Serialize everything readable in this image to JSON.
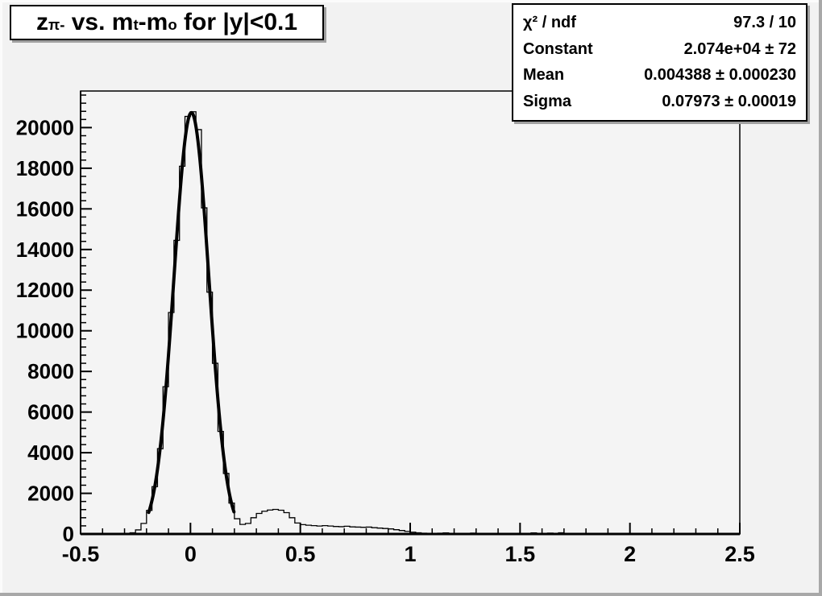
{
  "title": {
    "plain": "z_{pi-} vs. m_{t}-m_{o} for |y|<0.1",
    "segments": [
      {
        "text": "z"
      },
      {
        "text": "π-",
        "sub": true
      },
      {
        "text": " vs. m"
      },
      {
        "text": "t",
        "sub": true
      },
      {
        "text": "-m"
      },
      {
        "text": "o",
        "sub": true
      },
      {
        "text": " for |y|<0.1"
      }
    ]
  },
  "stats_box": {
    "rows": [
      {
        "label": "χ² / ndf",
        "value": "97.3 / 10"
      },
      {
        "label": "Constant",
        "value": "2.074e+04 ± 72"
      },
      {
        "label": "Mean",
        "value": "0.004388 ± 0.000230"
      },
      {
        "label": "Sigma",
        "value": "0.07973 ± 0.00019"
      }
    ]
  },
  "colors": {
    "canvas_background": "#f2f2f2",
    "frame_fill": "#f4f4f4",
    "line": "#000000",
    "box_fill": "#ffffff",
    "bevel_light": "#fbfbfb",
    "bevel_dark": "#a8a8a8"
  },
  "chart_data": {
    "type": "bar",
    "subtype": "step-histogram-with-gaussian-fit",
    "title": "z_{pi-} vs. m_{t}-m_{o} for |y|<0.1",
    "xlabel": "",
    "ylabel": "",
    "xlim": [
      -0.5,
      2.5
    ],
    "ylim": [
      0,
      21800
    ],
    "grid": false,
    "legend": false,
    "x_major_ticks": [
      -0.5,
      0,
      0.5,
      1,
      1.5,
      2,
      2.5
    ],
    "x_tick_labels": [
      "-0.5",
      "0",
      "0.5",
      "1",
      "1.5",
      "2",
      "2.5"
    ],
    "x_minor_step": 0.1,
    "y_major_step": 2000,
    "y_major_ticks": [
      0,
      2000,
      4000,
      6000,
      8000,
      10000,
      12000,
      14000,
      16000,
      18000,
      20000
    ],
    "y_tick_labels": [
      "0",
      "2000",
      "4000",
      "6000",
      "8000",
      "10000",
      "12000",
      "14000",
      "16000",
      "18000",
      "20000"
    ],
    "y_minor_step": 400,
    "bin_start": -0.5,
    "bin_width": 0.025,
    "bin_values": [
      0,
      0,
      0,
      0,
      0,
      0,
      5,
      10,
      30,
      60,
      200,
      520,
      1160,
      2330,
      4200,
      7250,
      10900,
      14450,
      18100,
      20550,
      20780,
      19900,
      16050,
      11900,
      8400,
      5050,
      2980,
      1520,
      750,
      470,
      520,
      800,
      1010,
      1120,
      1180,
      1210,
      1170,
      1050,
      800,
      540,
      460,
      430,
      410,
      390,
      410,
      390,
      370,
      360,
      380,
      350,
      340,
      330,
      340,
      310,
      290,
      270,
      250,
      210,
      170,
      130,
      90,
      60,
      40,
      30,
      25,
      40,
      55,
      35,
      25,
      20,
      30,
      45,
      30,
      20,
      15,
      10,
      15,
      10,
      10,
      15,
      10,
      20,
      55,
      25,
      15,
      45,
      20,
      60,
      25,
      10,
      10,
      5,
      5,
      10,
      5,
      5,
      5,
      10,
      5,
      5,
      5,
      0,
      5,
      0,
      5,
      0,
      5,
      0,
      0,
      5,
      0,
      0,
      5,
      0,
      0,
      0,
      0,
      0,
      0,
      0
    ],
    "fit": {
      "shape": "gaussian",
      "constant": 20740,
      "mean": 0.004388,
      "sigma": 0.07973,
      "chi2": 97.3,
      "ndf": 10,
      "constant_err": 72,
      "mean_err": 0.00023,
      "sigma_err": 0.00019,
      "draw_range": [
        -0.19,
        0.2
      ]
    }
  }
}
